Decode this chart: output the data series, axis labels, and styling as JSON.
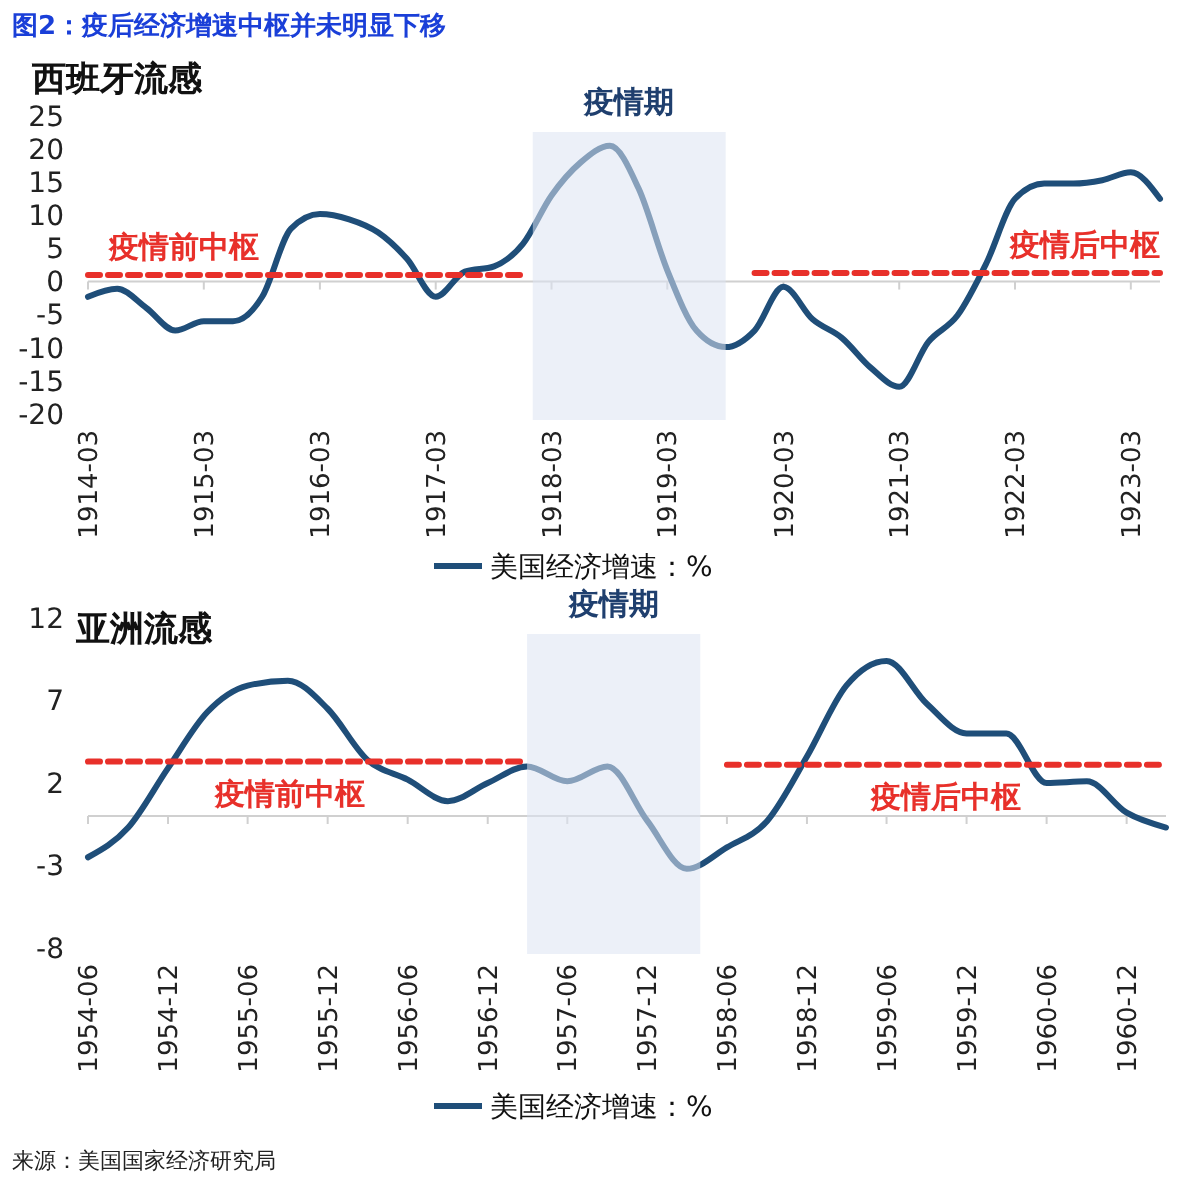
{
  "chart_data": [
    {
      "type": "line",
      "title": "图2：疫后经济增速中枢并未明显下移",
      "subtitle": "西班牙流感",
      "legend": "bottom",
      "xlim": [
        "1914-03",
        "1923-06"
      ],
      "xticks": [
        "1914-03",
        "1915-03",
        "1916-03",
        "1917-03",
        "1918-03",
        "1919-03",
        "1920-03",
        "1921-03",
        "1922-03",
        "1923-03"
      ],
      "ylim": [
        -20,
        25
      ],
      "yticks": [
        -20,
        -15,
        -10,
        -5,
        0,
        5,
        10,
        15,
        20,
        25
      ],
      "bands": [
        {
          "axis": "x",
          "from": "1918-01",
          "to": "1919-09",
          "label": "疫情期",
          "color": "#dce4f2"
        }
      ],
      "series": [
        {
          "name": "美国经济增速：%",
          "color": "#1f4e79",
          "x": [
            "1914-03",
            "1914-06",
            "1914-09",
            "1914-12",
            "1915-03",
            "1915-06",
            "1915-09",
            "1915-12",
            "1916-03",
            "1916-06",
            "1916-09",
            "1916-12",
            "1917-03",
            "1917-06",
            "1917-09",
            "1917-12",
            "1918-03",
            "1918-06",
            "1918-09",
            "1918-12",
            "1919-03",
            "1919-06",
            "1919-09",
            "1919-12",
            "1920-03",
            "1920-06",
            "1920-09",
            "1920-12",
            "1921-03",
            "1921-06",
            "1921-09",
            "1921-12",
            "1922-03",
            "1922-06",
            "1922-09",
            "1922-12",
            "1923-03",
            "1923-06"
          ],
          "values": [
            -2.3,
            -1.1,
            -4,
            -7.4,
            -6,
            -6,
            -2.3,
            8,
            10.2,
            9.4,
            7.4,
            3.4,
            -2.3,
            1.5,
            2.3,
            5.7,
            13,
            18,
            20.5,
            14,
            1.7,
            -7.4,
            -9.9,
            -7.4,
            -0.8,
            -5.7,
            -8.5,
            -13,
            -15.9,
            -9.1,
            -5.1,
            2.8,
            12.5,
            14.8,
            14.8,
            15.3,
            16.5,
            12.5
          ]
        },
        {
          "type": "line",
          "name": "疫情前中枢",
          "color": "#e8302a",
          "line_style": "dashed",
          "x": [
            "1914-03",
            "1917-12"
          ],
          "values": [
            1,
            1
          ]
        },
        {
          "type": "line",
          "name": "疫情后中枢",
          "color": "#e8302a",
          "line_style": "dashed",
          "x": [
            "1919-12",
            "1923-06"
          ],
          "values": [
            1.3,
            1.3
          ]
        }
      ]
    },
    {
      "type": "line",
      "title": "亚洲流感",
      "legend": "bottom",
      "xlim": [
        "1954-06",
        "1961-03"
      ],
      "xticks": [
        "1954-06",
        "1954-12",
        "1955-06",
        "1955-12",
        "1956-06",
        "1956-12",
        "1957-06",
        "1957-12",
        "1958-06",
        "1958-12",
        "1959-06",
        "1959-12",
        "1960-06",
        "1960-12"
      ],
      "ylim": [
        -8,
        12
      ],
      "yticks": [
        -8,
        -3,
        2,
        7,
        12
      ],
      "bands": [
        {
          "axis": "x",
          "from": "1957-03",
          "to": "1958-04",
          "label": "疫情期",
          "color": "#dce4f2"
        }
      ],
      "series": [
        {
          "name": "美国经济增速：%",
          "color": "#1f4e79",
          "x": [
            "1954-06",
            "1954-09",
            "1954-12",
            "1955-03",
            "1955-06",
            "1955-09",
            "1955-12",
            "1956-03",
            "1956-06",
            "1956-09",
            "1956-12",
            "1957-03",
            "1957-06",
            "1957-09",
            "1957-12",
            "1958-03",
            "1958-06",
            "1958-09",
            "1958-12",
            "1959-03",
            "1959-06",
            "1959-09",
            "1959-12",
            "1960-03",
            "1960-06",
            "1960-09",
            "1960-12",
            "1961-03"
          ],
          "values": [
            -2.5,
            -0.7,
            2.9,
            6.3,
            7.9,
            8.2,
            6.5,
            3.4,
            2.2,
            0.9,
            2,
            3,
            2.1,
            3,
            -0.3,
            -3.2,
            -1.9,
            -0.3,
            3.6,
            7.9,
            9.4,
            6.8,
            5,
            5,
            2,
            2.1,
            0.2,
            -0.7
          ]
        },
        {
          "type": "line",
          "name": "疫情前中枢",
          "color": "#e8302a",
          "line_style": "dashed",
          "x": [
            "1954-06",
            "1957-03"
          ],
          "values": [
            3.3,
            3.3
          ]
        },
        {
          "type": "line",
          "name": "疫情后中枢",
          "color": "#e8302a",
          "line_style": "dashed",
          "x": [
            "1958-06",
            "1961-03"
          ],
          "values": [
            3.1,
            3.1
          ]
        }
      ],
      "annotations": [
        "来源：美国国家经济研究局"
      ]
    }
  ]
}
